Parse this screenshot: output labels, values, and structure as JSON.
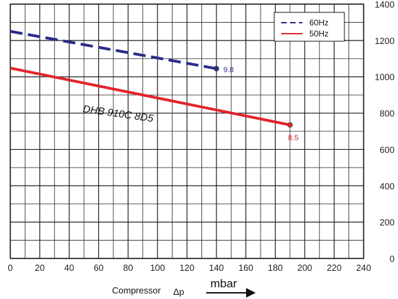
{
  "chart_data": {
    "type": "line",
    "title": "",
    "x": {
      "min": 0,
      "max": 240,
      "ticks": [
        0,
        20,
        40,
        60,
        80,
        100,
        120,
        140,
        160,
        180,
        200,
        220,
        240
      ]
    },
    "y_right": {
      "min": 0,
      "max": 1400,
      "ticks": [
        0,
        200,
        400,
        600,
        800,
        1000,
        1200,
        1400
      ]
    },
    "xlabel": "Compressor",
    "xlabel_symbol": "Δp",
    "xunit": "mbar",
    "grid": true,
    "legend_position": "top-right",
    "annotation": "DHB 910C 8D5",
    "series": [
      {
        "name": "60Hz",
        "style": "dashed",
        "color": "#2b2b8c",
        "points": [
          [
            0,
            1250
          ],
          [
            140,
            1045
          ]
        ],
        "end_label": "9.8"
      },
      {
        "name": "50Hz",
        "style": "solid",
        "color": "#e0262b",
        "points": [
          [
            0,
            1048
          ],
          [
            190,
            735
          ]
        ],
        "end_label": "8.5"
      }
    ]
  }
}
